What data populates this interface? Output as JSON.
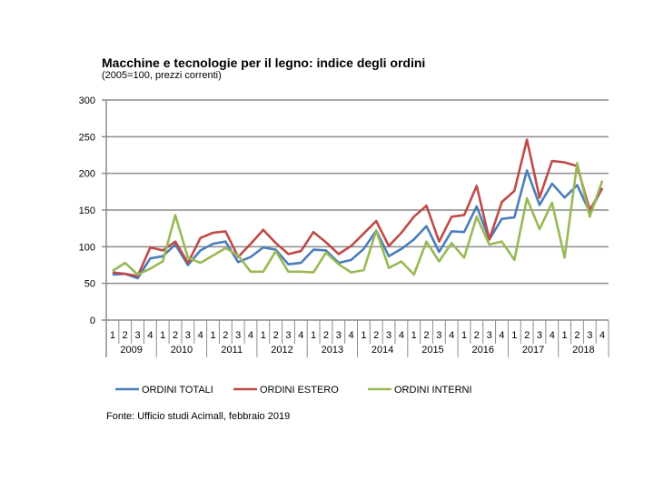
{
  "chart_data": {
    "type": "line",
    "title": "Macchine e tecnologie per il legno: indice degli ordini",
    "subtitle": "(2005=100, prezzi correnti)",
    "source": "Fonte: Ufficio studi Acimall, febbraio 2019",
    "xlabel": "",
    "ylabel": "",
    "ylim": [
      0,
      300
    ],
    "yticks": [
      "0",
      "50",
      "100",
      "150",
      "200",
      "250",
      "300"
    ],
    "quarters": [
      "1",
      "2",
      "3",
      "4"
    ],
    "years": [
      "2009",
      "2010",
      "2011",
      "2012",
      "2013",
      "2014",
      "2015",
      "2016",
      "2017",
      "2018"
    ],
    "grid": true,
    "legend_position": "bottom",
    "series": [
      {
        "name": "ORDINI TOTALI",
        "color": "#4a7ebb",
        "values": [
          62,
          63,
          57,
          84,
          87,
          103,
          75,
          95,
          104,
          107,
          79,
          86,
          99,
          96,
          76,
          78,
          96,
          95,
          78,
          82,
          97,
          122,
          87,
          97,
          110,
          128,
          93,
          121,
          120,
          155,
          110,
          138,
          140,
          204,
          157,
          186,
          167,
          184,
          147,
          180
        ]
      },
      {
        "name": "ORDINI ESTERO",
        "color": "#be4b48",
        "values": [
          65,
          63,
          60,
          99,
          95,
          107,
          78,
          112,
          119,
          121,
          86,
          104,
          123,
          105,
          90,
          94,
          120,
          106,
          90,
          101,
          118,
          135,
          101,
          119,
          141,
          156,
          107,
          141,
          143,
          183,
          110,
          161,
          176,
          246,
          167,
          217,
          215,
          210,
          150,
          180
        ]
      },
      {
        "name": "ORDINI INTERNI",
        "color": "#98b954",
        "values": [
          67,
          78,
          62,
          70,
          80,
          143,
          85,
          78,
          88,
          98,
          88,
          66,
          66,
          94,
          66,
          66,
          65,
          92,
          76,
          65,
          68,
          122,
          71,
          80,
          62,
          107,
          80,
          105,
          85,
          141,
          103,
          107,
          82,
          166,
          124,
          160,
          85,
          214,
          141,
          190
        ]
      }
    ]
  }
}
